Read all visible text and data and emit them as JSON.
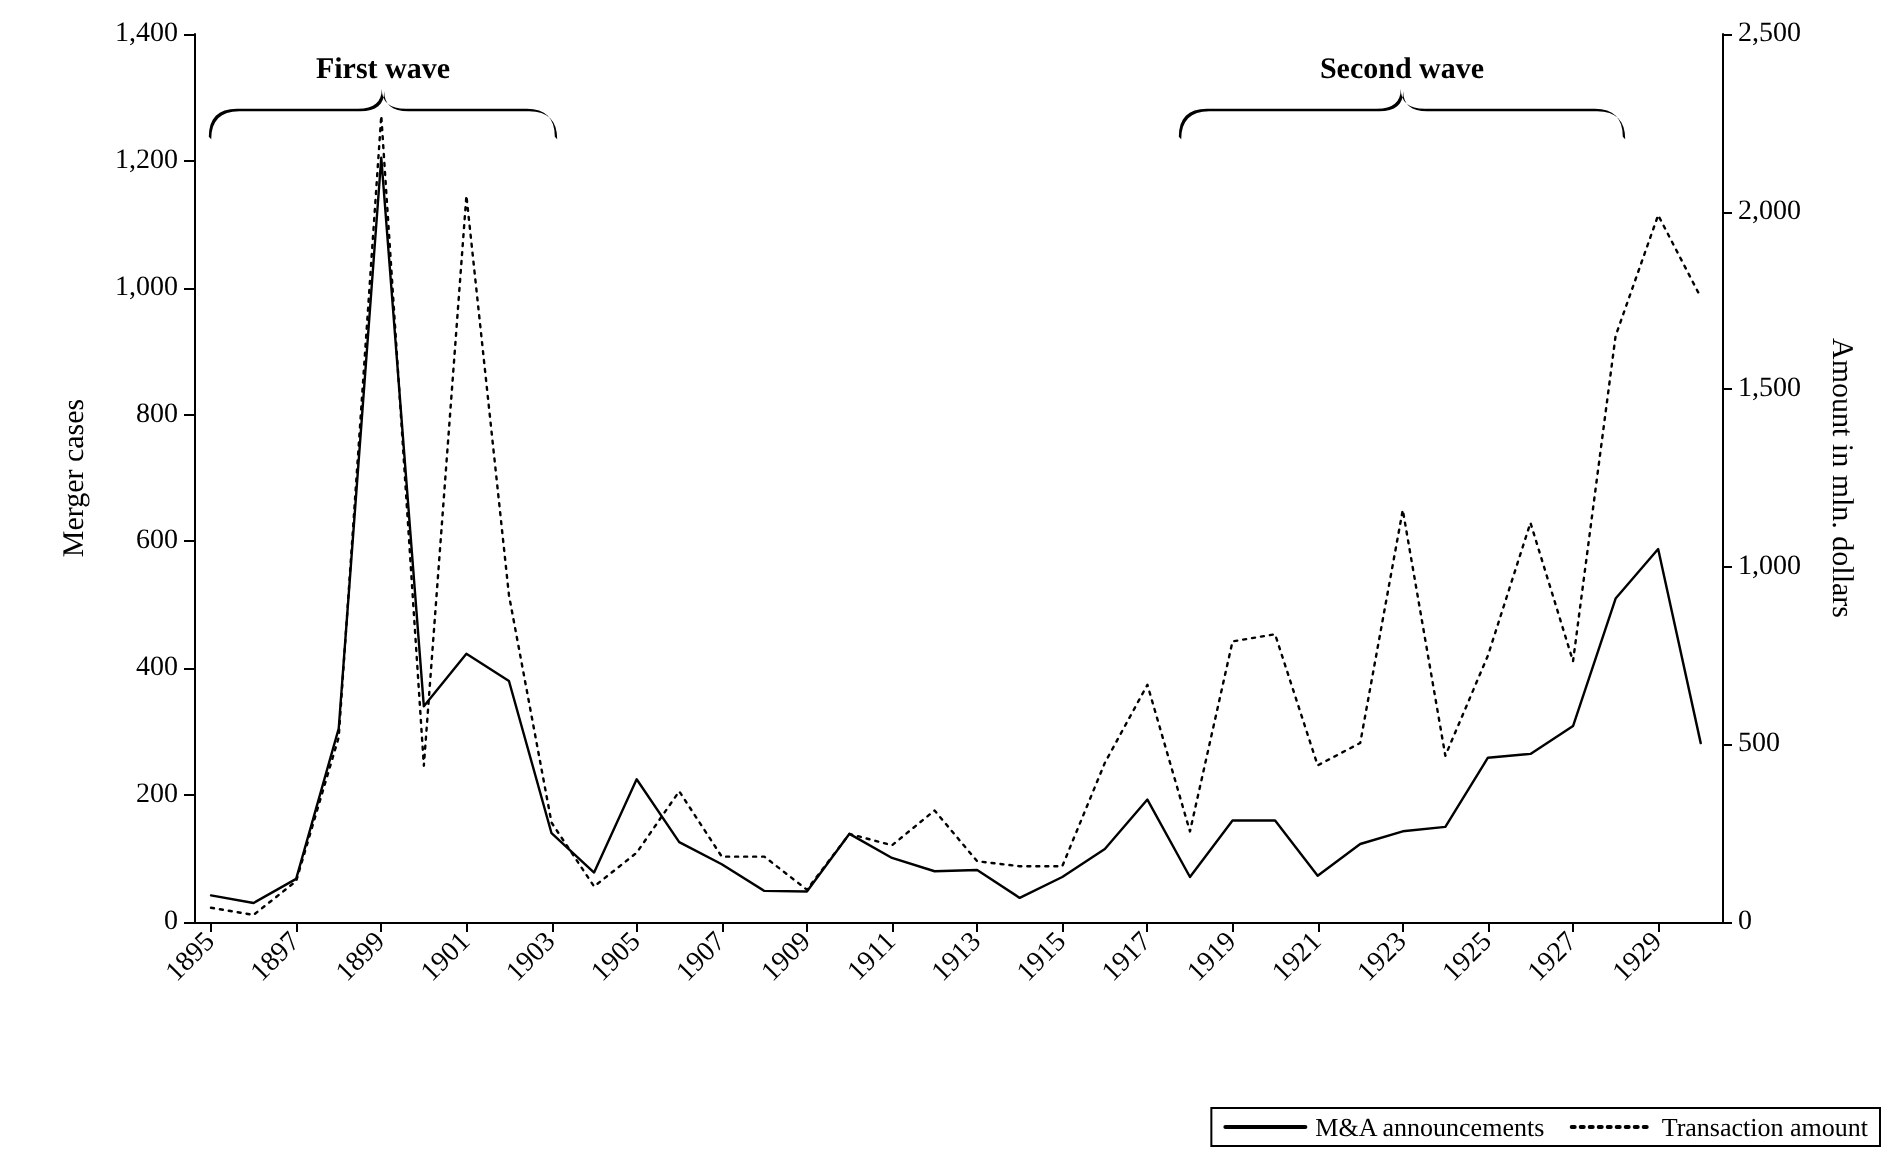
{
  "chart_data": {
    "type": "line",
    "ylabel": "Merger cases",
    "y2label": "Amount in mln. dollars",
    "x": [
      1895,
      1896,
      1897,
      1898,
      1899,
      1900,
      1901,
      1902,
      1903,
      1904,
      1905,
      1906,
      1907,
      1908,
      1909,
      1910,
      1911,
      1912,
      1913,
      1914,
      1915,
      1916,
      1917,
      1918,
      1919,
      1920,
      1921,
      1922,
      1923,
      1924,
      1925,
      1926,
      1927,
      1928,
      1929,
      1930
    ],
    "xlim": [
      1894.6,
      1930.5
    ],
    "xticks": [
      1895,
      1897,
      1899,
      1901,
      1903,
      1905,
      1907,
      1909,
      1911,
      1913,
      1915,
      1917,
      1919,
      1921,
      1923,
      1925,
      1927,
      1929
    ],
    "ylim": [
      0,
      1400
    ],
    "yticks": [
      0,
      200,
      400,
      600,
      800,
      {
        "value": 1000,
        "label": "1,000"
      },
      {
        "value": 1200,
        "label": "1,200"
      },
      {
        "value": 1400,
        "label": "1,400"
      }
    ],
    "y2lim": [
      0,
      2500
    ],
    "y2ticks": [
      0,
      500,
      {
        "value": 1000,
        "label": "1,000"
      },
      {
        "value": 1500,
        "label": "1,500"
      },
      {
        "value": 2000,
        "label": "2,000"
      },
      {
        "value": 2500,
        "label": "2,500"
      }
    ],
    "series": [
      {
        "name": "M&A announcements",
        "color": "#000000",
        "line_style": "solid",
        "values": [
          42,
          30,
          68,
          305,
          1205,
          340,
          423,
          380,
          140,
          78,
          225,
          126,
          91,
          49,
          48,
          139,
          101,
          80,
          82,
          38,
          71,
          115,
          193,
          71,
          160,
          160,
          73,
          123,
          143,
          150,
          259,
          265,
          309,
          510,
          588,
          282
        ]
      },
      {
        "name": "Transaction amount",
        "color": "#000000",
        "line_style": "dotted",
        "axis": "y2",
        "values": [
          40,
          20,
          115,
          520,
          2270,
          440,
          2045,
          920,
          280,
          100,
          195,
          368,
          184,
          184,
          91,
          248,
          216,
          314,
          171,
          157,
          157,
          448,
          668,
          255,
          790,
          810,
          441,
          504,
          1160,
          468,
          750,
          1124,
          734,
          1650,
          1990,
          1759
        ]
      }
    ],
    "annotations": [
      "First wave",
      "Second wave"
    ],
    "grid": false,
    "marker": "none",
    "legend": "bottom right"
  }
}
